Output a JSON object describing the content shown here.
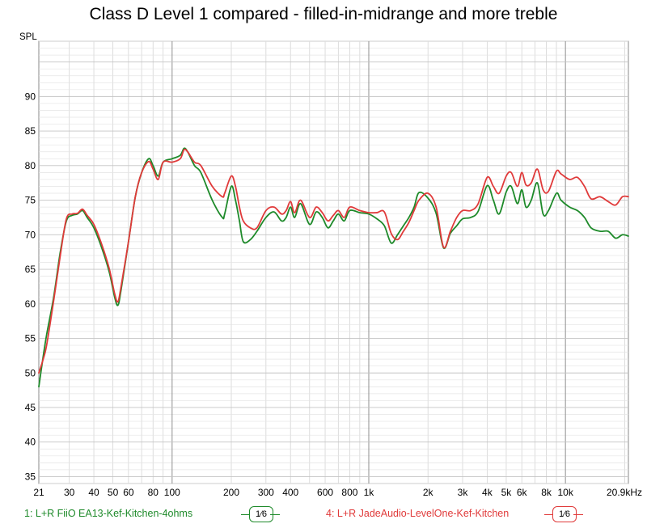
{
  "chart_data": {
    "type": "line",
    "title": "Class D Level 1 compared - filled-in-midrange and more treble",
    "ylabel": "SPL",
    "xlabel": "",
    "xscale": "log",
    "xlim": [
      21,
      20900
    ],
    "ylim": [
      34,
      98
    ],
    "grid": true,
    "x_tick_labels": [
      {
        "v": 21,
        "label": "21"
      },
      {
        "v": 30,
        "label": "30"
      },
      {
        "v": 40,
        "label": "40"
      },
      {
        "v": 50,
        "label": "50"
      },
      {
        "v": 60,
        "label": "60"
      },
      {
        "v": 80,
        "label": "80"
      },
      {
        "v": 100,
        "label": "100"
      },
      {
        "v": 200,
        "label": "200"
      },
      {
        "v": 300,
        "label": "300"
      },
      {
        "v": 400,
        "label": "400"
      },
      {
        "v": 600,
        "label": "600"
      },
      {
        "v": 800,
        "label": "800"
      },
      {
        "v": 1000,
        "label": "1k"
      },
      {
        "v": 2000,
        "label": "2k"
      },
      {
        "v": 3000,
        "label": "3k"
      },
      {
        "v": 4000,
        "label": "4k"
      },
      {
        "v": 5000,
        "label": "5k"
      },
      {
        "v": 6000,
        "label": "6k"
      },
      {
        "v": 8000,
        "label": "8k"
      },
      {
        "v": 10000,
        "label": "10k"
      },
      {
        "v": 20900,
        "label": "20.9kHz"
      }
    ],
    "y_ticks": [
      35,
      40,
      45,
      50,
      55,
      60,
      65,
      70,
      75,
      80,
      85,
      90
    ],
    "series": [
      {
        "name": "1: L+R FiiO EA13-Kef-Kitchen-4ohms",
        "color": "#1e8a2a",
        "points": [
          [
            21,
            48
          ],
          [
            22,
            52
          ],
          [
            23,
            55.5
          ],
          [
            25,
            61
          ],
          [
            27,
            67.5
          ],
          [
            29,
            72
          ],
          [
            31,
            72.8
          ],
          [
            33,
            73
          ],
          [
            35,
            73.5
          ],
          [
            37,
            72.5
          ],
          [
            40,
            71
          ],
          [
            44,
            68
          ],
          [
            48,
            64.5
          ],
          [
            51,
            61
          ],
          [
            53,
            59.8
          ],
          [
            55,
            62
          ],
          [
            60,
            69
          ],
          [
            65,
            75.5
          ],
          [
            70,
            79
          ],
          [
            76,
            81
          ],
          [
            80,
            80
          ],
          [
            85,
            78.5
          ],
          [
            90,
            80.5
          ],
          [
            100,
            81
          ],
          [
            110,
            81.5
          ],
          [
            115,
            82.5
          ],
          [
            120,
            82
          ],
          [
            130,
            80
          ],
          [
            140,
            79
          ],
          [
            160,
            75
          ],
          [
            180,
            72.5
          ],
          [
            185,
            73
          ],
          [
            200,
            77
          ],
          [
            210,
            75
          ],
          [
            220,
            72
          ],
          [
            230,
            69
          ],
          [
            250,
            69.3
          ],
          [
            270,
            70.5
          ],
          [
            300,
            72.5
          ],
          [
            330,
            73.3
          ],
          [
            360,
            72
          ],
          [
            380,
            72.5
          ],
          [
            400,
            74
          ],
          [
            420,
            72.5
          ],
          [
            450,
            74.5
          ],
          [
            500,
            71.5
          ],
          [
            540,
            73.3
          ],
          [
            580,
            72.5
          ],
          [
            620,
            71
          ],
          [
            660,
            72
          ],
          [
            700,
            73
          ],
          [
            750,
            72
          ],
          [
            800,
            73.5
          ],
          [
            900,
            73.2
          ],
          [
            1000,
            73
          ],
          [
            1100,
            72.3
          ],
          [
            1200,
            71.3
          ],
          [
            1300,
            68.8
          ],
          [
            1400,
            70
          ],
          [
            1500,
            71.3
          ],
          [
            1600,
            72.5
          ],
          [
            1700,
            74
          ],
          [
            1800,
            76.1
          ],
          [
            2000,
            75.3
          ],
          [
            2200,
            73.1
          ],
          [
            2400,
            68.1
          ],
          [
            2600,
            70.2
          ],
          [
            2800,
            71.3
          ],
          [
            3000,
            72.3
          ],
          [
            3300,
            72.5
          ],
          [
            3600,
            73.4
          ],
          [
            4000,
            77.1
          ],
          [
            4300,
            75
          ],
          [
            4600,
            73
          ],
          [
            5000,
            76.2
          ],
          [
            5300,
            77
          ],
          [
            5700,
            74.5
          ],
          [
            6000,
            76.5
          ],
          [
            6300,
            74
          ],
          [
            6700,
            75
          ],
          [
            7200,
            77.5
          ],
          [
            7700,
            73
          ],
          [
            8200,
            73.5
          ],
          [
            9000,
            76
          ],
          [
            9500,
            75
          ],
          [
            10500,
            74
          ],
          [
            11500,
            73.5
          ],
          [
            12500,
            72.5
          ],
          [
            13500,
            71
          ],
          [
            15000,
            70.5
          ],
          [
            16500,
            70.5
          ],
          [
            18000,
            69.5
          ],
          [
            19500,
            70
          ],
          [
            20900,
            69.8
          ]
        ]
      },
      {
        "name": "4: L+R JadeAudio-LevelOne-Kef-Kitchen",
        "color": "#e03a3a",
        "points": [
          [
            21,
            50
          ],
          [
            22,
            51.8
          ],
          [
            23,
            54
          ],
          [
            25,
            60.5
          ],
          [
            27,
            67
          ],
          [
            29,
            72.3
          ],
          [
            31,
            73
          ],
          [
            33,
            73.1
          ],
          [
            35,
            73.7
          ],
          [
            37,
            72.8
          ],
          [
            40,
            71.5
          ],
          [
            44,
            68.5
          ],
          [
            48,
            65
          ],
          [
            51,
            61.5
          ],
          [
            53,
            60.3
          ],
          [
            55,
            62.5
          ],
          [
            60,
            69
          ],
          [
            65,
            75.5
          ],
          [
            70,
            79
          ],
          [
            76,
            80.6
          ],
          [
            80,
            79.5
          ],
          [
            85,
            78
          ],
          [
            90,
            80.5
          ],
          [
            100,
            80.5
          ],
          [
            110,
            81
          ],
          [
            115,
            82.3
          ],
          [
            120,
            82
          ],
          [
            130,
            80.5
          ],
          [
            140,
            80
          ],
          [
            160,
            77
          ],
          [
            180,
            75.5
          ],
          [
            185,
            76
          ],
          [
            200,
            78.5
          ],
          [
            210,
            77
          ],
          [
            220,
            74
          ],
          [
            230,
            72
          ],
          [
            250,
            71
          ],
          [
            270,
            71
          ],
          [
            300,
            73.5
          ],
          [
            330,
            74
          ],
          [
            360,
            73
          ],
          [
            380,
            73.5
          ],
          [
            400,
            74.8
          ],
          [
            420,
            73.2
          ],
          [
            450,
            75
          ],
          [
            500,
            72.5
          ],
          [
            540,
            74
          ],
          [
            580,
            73.2
          ],
          [
            620,
            72
          ],
          [
            660,
            72.8
          ],
          [
            700,
            73.5
          ],
          [
            750,
            72.5
          ],
          [
            800,
            74
          ],
          [
            900,
            73.5
          ],
          [
            1000,
            73.2
          ],
          [
            1100,
            73.2
          ],
          [
            1200,
            73.3
          ],
          [
            1300,
            70.2
          ],
          [
            1400,
            69.3
          ],
          [
            1500,
            70.5
          ],
          [
            1600,
            71.8
          ],
          [
            1700,
            73.5
          ],
          [
            1800,
            75
          ],
          [
            2000,
            76
          ],
          [
            2200,
            74
          ],
          [
            2400,
            68.2
          ],
          [
            2600,
            70.5
          ],
          [
            2800,
            72.5
          ],
          [
            3000,
            73.5
          ],
          [
            3300,
            73.5
          ],
          [
            3600,
            74.5
          ],
          [
            4000,
            78.3
          ],
          [
            4300,
            77
          ],
          [
            4600,
            76
          ],
          [
            5000,
            78.5
          ],
          [
            5300,
            79
          ],
          [
            5700,
            77
          ],
          [
            6000,
            79
          ],
          [
            6300,
            77.2
          ],
          [
            6700,
            77.5
          ],
          [
            7200,
            79.5
          ],
          [
            7700,
            76.5
          ],
          [
            8200,
            76.3
          ],
          [
            9000,
            79.2
          ],
          [
            9500,
            78.8
          ],
          [
            10500,
            78
          ],
          [
            11500,
            78.3
          ],
          [
            12500,
            77
          ],
          [
            13500,
            75.2
          ],
          [
            15000,
            75.5
          ],
          [
            16500,
            74.8
          ],
          [
            18000,
            74.3
          ],
          [
            19500,
            75.5
          ],
          [
            20900,
            75.5
          ]
        ]
      }
    ],
    "legend": [
      {
        "label": "1: L+R FiiO EA13-Kef-Kitchen-4ohms",
        "color": "#1e8a2a",
        "smoothing": "1⁄6"
      },
      {
        "label": "4: L+R JadeAudio-LevelOne-Kef-Kitchen",
        "color": "#e03a3a",
        "smoothing": "1⁄6"
      }
    ],
    "legend_placement": "bottom"
  }
}
